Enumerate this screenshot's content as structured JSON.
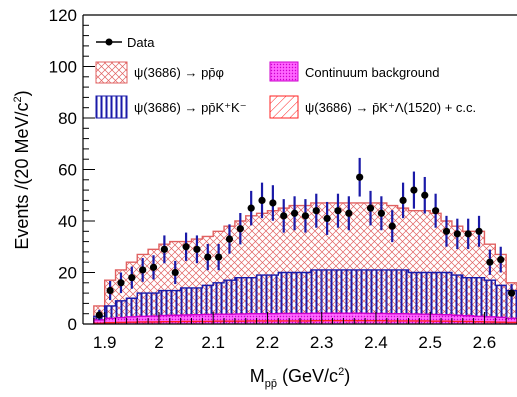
{
  "chart_data": {
    "type": "histogram",
    "xlabel": {
      "main": "M",
      "sub": "pp̄",
      "unit_open": " (GeV/c",
      "unit_pow": "2",
      "unit_close": ")"
    },
    "ylabel": {
      "main": "Events /(20 MeV/c",
      "pow": "2",
      "close": ")"
    },
    "xlim": [
      1.86,
      2.66
    ],
    "ylim": [
      0,
      120
    ],
    "xticks": [
      1.9,
      2.0,
      2.1,
      2.2,
      2.3,
      2.4,
      2.5,
      2.6
    ],
    "xtick_labels": [
      "1.9",
      "2",
      "2.1",
      "2.2",
      "2.3",
      "2.4",
      "2.5",
      "2.6"
    ],
    "yticks": [
      0,
      20,
      40,
      60,
      80,
      100,
      120
    ],
    "ytick_labels": [
      "0",
      "20",
      "40",
      "60",
      "80",
      "100",
      "120"
    ],
    "bin_width": 0.02,
    "bin_edges_start": 1.88,
    "legend_labels": {
      "data": "Data",
      "ppphi": "ψ(3686) → pp̄φ",
      "continuum": "Continuum background",
      "ppKK": "ψ(3686) → pp̄K⁺K⁻",
      "lambda1520": "ψ(3686) → p̄K⁺Λ(1520) + c.c."
    },
    "colors": {
      "data": "#000000",
      "ppphi": "#e06060",
      "ppKK": "#1a1aa8",
      "continuum": "#ff44ff",
      "lambda1520": "#ff2020"
    },
    "series": [
      {
        "name": "Data",
        "x": [
          1.89,
          1.91,
          1.93,
          1.95,
          1.97,
          1.99,
          2.01,
          2.03,
          2.05,
          2.07,
          2.09,
          2.11,
          2.13,
          2.15,
          2.17,
          2.19,
          2.21,
          2.23,
          2.25,
          2.27,
          2.29,
          2.31,
          2.33,
          2.35,
          2.37,
          2.39,
          2.41,
          2.43,
          2.45,
          2.47,
          2.49,
          2.51,
          2.53,
          2.55,
          2.57,
          2.59,
          2.61,
          2.63,
          2.65
        ],
        "y": [
          3.5,
          13,
          16,
          18,
          21,
          22,
          29,
          20,
          30,
          29,
          26,
          26,
          33,
          37,
          45,
          48,
          47,
          42,
          43,
          42,
          44,
          41,
          44,
          43,
          57,
          45,
          43,
          38,
          48,
          52,
          50,
          44,
          36,
          35,
          35,
          36,
          24,
          25,
          12
        ],
        "yerr": [
          2.0,
          3.7,
          4.0,
          4.3,
          4.6,
          4.7,
          5.4,
          4.5,
          5.5,
          5.4,
          5.1,
          5.1,
          5.7,
          6.1,
          6.7,
          6.9,
          6.9,
          6.5,
          6.6,
          6.5,
          6.6,
          6.4,
          6.6,
          6.6,
          7.5,
          6.7,
          6.6,
          6.2,
          6.9,
          7.2,
          7.1,
          6.6,
          6.0,
          5.9,
          5.9,
          6.0,
          4.9,
          5.0,
          3.5
        ]
      },
      {
        "name": "ψ(3686) → pp̄φ",
        "y": [
          7,
          17,
          21,
          24,
          27,
          29,
          31,
          32,
          32,
          33,
          34,
          36,
          38,
          40,
          42,
          43,
          44,
          45,
          46,
          46,
          47,
          47,
          47,
          47,
          47,
          47,
          47,
          46,
          45,
          44,
          44,
          43,
          40,
          38,
          36,
          36,
          31,
          27,
          16
        ]
      },
      {
        "name": "ψ(3686) → pp̄K⁺K⁻",
        "y": [
          3,
          7,
          9,
          10,
          12,
          12,
          13,
          13,
          14,
          14,
          15,
          16,
          17,
          18,
          18,
          19,
          19,
          20,
          20,
          20,
          21,
          21,
          21,
          21,
          21,
          21,
          21,
          21,
          21,
          20,
          20,
          20,
          20,
          19,
          18,
          18,
          17,
          15,
          13
        ]
      },
      {
        "name": "Continuum background",
        "y": [
          1.6,
          2.2,
          2.5,
          2.8,
          3.0,
          3.1,
          3.3,
          3.4,
          3.5,
          3.6,
          3.7,
          3.8,
          3.8,
          3.9,
          4.0,
          4.0,
          4.0,
          4.1,
          4.1,
          4.1,
          4.2,
          4.2,
          4.2,
          4.2,
          4.2,
          4.1,
          4.1,
          4.0,
          4.0,
          3.9,
          3.8,
          3.7,
          3.6,
          3.4,
          3.2,
          3.0,
          2.8,
          2.6,
          2.2
        ]
      },
      {
        "name": "ψ(3686) → p̄K⁺Λ(1520) + c.c.",
        "y": [
          0.3,
          0.5,
          0.6,
          0.7,
          0.8,
          0.8,
          0.9,
          0.9,
          1.0,
          1.0,
          1.0,
          1.1,
          1.1,
          1.1,
          1.2,
          1.2,
          1.2,
          1.2,
          1.2,
          1.2,
          1.3,
          1.3,
          1.3,
          1.3,
          1.3,
          1.3,
          1.3,
          1.2,
          1.2,
          1.2,
          1.2,
          1.1,
          1.1,
          1.0,
          1.0,
          0.9,
          0.8,
          0.7,
          0.6
        ]
      }
    ]
  }
}
